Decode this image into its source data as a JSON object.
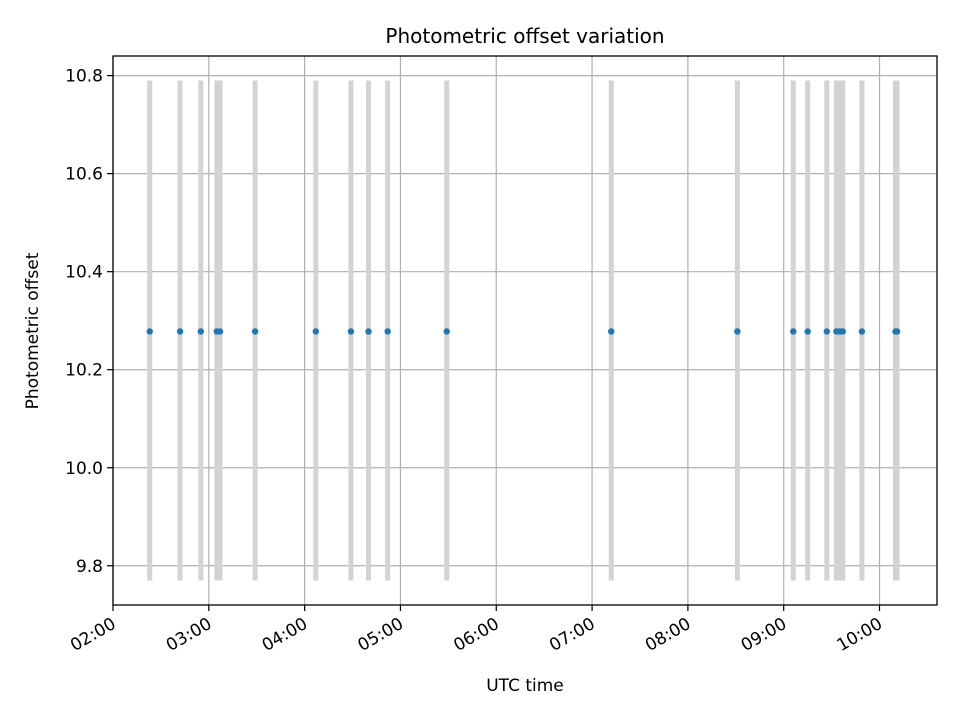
{
  "chart_data": {
    "type": "scatter",
    "title": "Photometric offset variation",
    "xlabel": "UTC time",
    "ylabel": "Photometric offset",
    "xlim": [
      "02:00",
      "10:36"
    ],
    "ylim": [
      9.72,
      10.84
    ],
    "grid": true,
    "x_ticks": [
      "02:00",
      "03:00",
      "04:00",
      "05:00",
      "06:00",
      "07:00",
      "08:00",
      "09:00",
      "10:00"
    ],
    "y_ticks": [
      "9.8",
      "10.0",
      "10.2",
      "10.4",
      "10.6",
      "10.8"
    ],
    "colors": {
      "points": "#1f77b4",
      "error_bars": "#d3d3d3"
    },
    "points": {
      "x": [
        "02:23",
        "02:42",
        "02:55",
        "03:05",
        "03:07",
        "03:29",
        "04:07",
        "04:29",
        "04:40",
        "04:52",
        "05:29",
        "07:12",
        "08:31",
        "09:06",
        "09:15",
        "09:27",
        "09:33",
        "09:35",
        "09:37",
        "09:49",
        "10:10",
        "10:11"
      ],
      "y": [
        10.278,
        10.278,
        10.278,
        10.278,
        10.278,
        10.278,
        10.278,
        10.278,
        10.278,
        10.278,
        10.278,
        10.278,
        10.278,
        10.278,
        10.278,
        10.278,
        10.278,
        10.278,
        10.278,
        10.278,
        10.278,
        10.278
      ],
      "y_low": [
        9.77,
        9.77,
        9.77,
        9.77,
        9.77,
        9.77,
        9.77,
        9.77,
        9.77,
        9.77,
        9.77,
        9.77,
        9.77,
        9.77,
        9.77,
        9.77,
        9.77,
        9.77,
        9.77,
        9.77,
        9.77,
        9.77
      ],
      "y_high": [
        10.79,
        10.79,
        10.79,
        10.79,
        10.79,
        10.79,
        10.79,
        10.79,
        10.79,
        10.79,
        10.79,
        10.79,
        10.79,
        10.79,
        10.79,
        10.79,
        10.79,
        10.79,
        10.79,
        10.79,
        10.79,
        10.79
      ]
    }
  }
}
